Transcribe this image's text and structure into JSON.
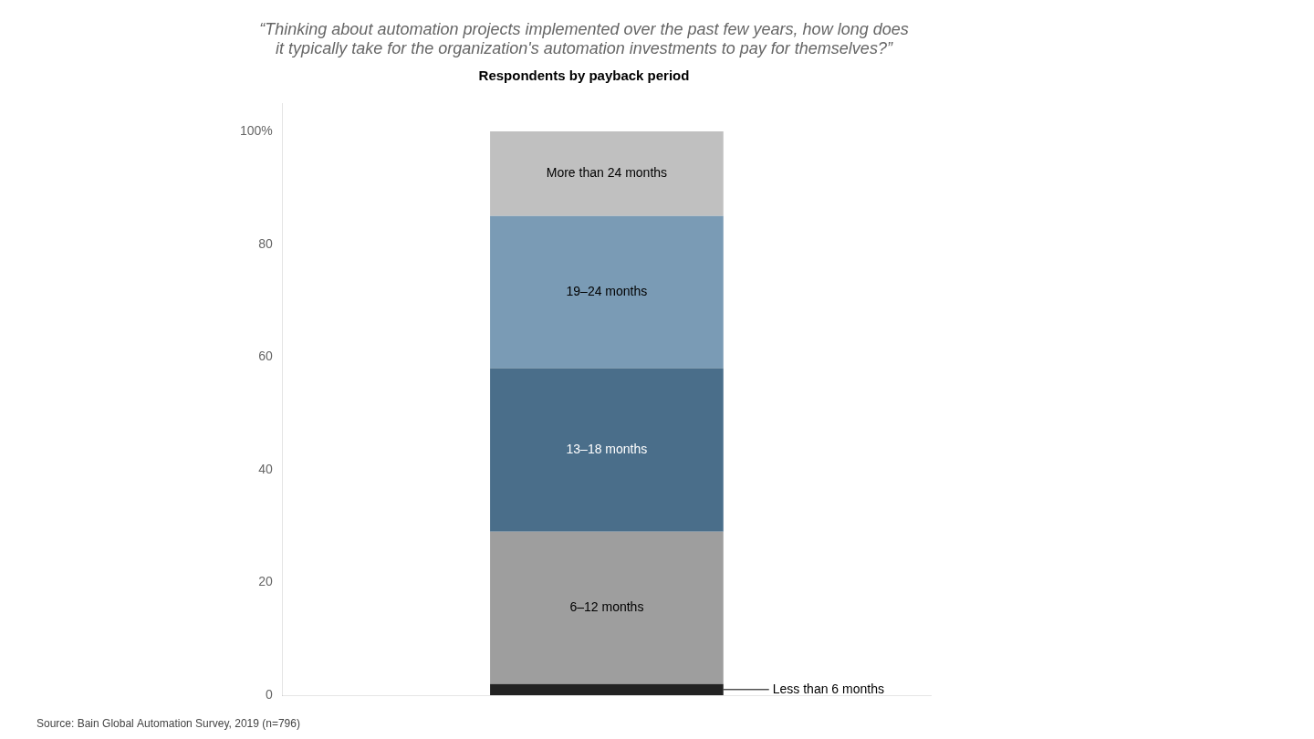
{
  "chart_data": {
    "type": "bar",
    "stacked": true,
    "title": "“Thinking about automation projects implemented over the past few years, how long does\nit typically take for the organization's automation investments to pay for themselves?”",
    "subtitle": "Respondents by payback period",
    "source": "Source: Bain Global Automation Survey, 2019 (n=796)",
    "categories": [
      null
    ],
    "series": [
      {
        "name": "Less than 6 months",
        "color": "#222222",
        "values": [
          2
        ]
      },
      {
        "name": "6–12 months",
        "color": "#9e9e9e",
        "values": [
          27
        ]
      },
      {
        "name": "13–18 months",
        "color": "#4a6e8a",
        "values": [
          29
        ]
      },
      {
        "name": "19–24 months",
        "color": "#7a9bb5",
        "values": [
          27
        ]
      },
      {
        "name": "More than 24 months",
        "color": "#c0c0c0",
        "values": [
          15
        ]
      }
    ],
    "ylim": [
      0,
      105
    ],
    "yticks": [
      0,
      20,
      40,
      60,
      80,
      {
        "value": 100,
        "label": "100%"
      }
    ],
    "grid": false,
    "legend": false,
    "tick_labels": "y"
  }
}
